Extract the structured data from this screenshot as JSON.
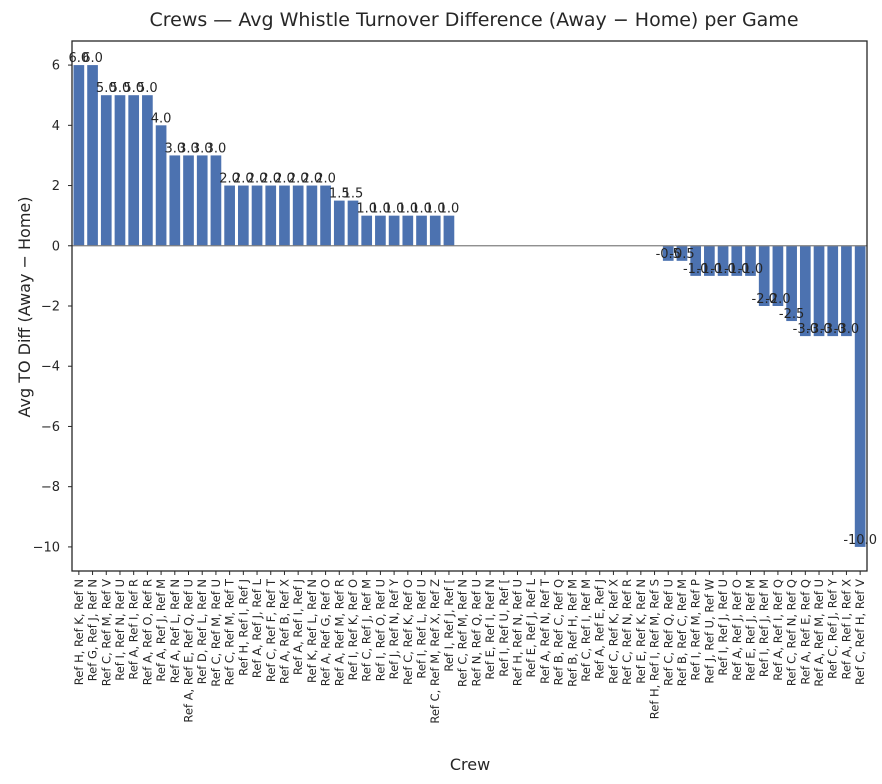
{
  "chart_data": {
    "type": "bar",
    "title": "Crews — Avg Whistle Turnover Difference (Away − Home) per Game",
    "xlabel": "Crew",
    "ylabel": "Avg TO Diff (Away − Home)",
    "ylim": [
      -10.8,
      6.8
    ],
    "yticks": [
      6,
      4,
      2,
      0,
      -2,
      -4,
      -6,
      -8,
      -10
    ],
    "grid": false,
    "legend": "none",
    "reference_line": 0,
    "colors": {
      "bar": "#4c72b0",
      "zero_line": "#808080",
      "frame": "#262626"
    },
    "categories": [
      "Ref H, Ref K, Ref N",
      "Ref G, Ref J, Ref N",
      "Ref C, Ref M, Ref V",
      "Ref I, Ref N, Ref U",
      "Ref A, Ref I, Ref R",
      "Ref A, Ref O, Ref R",
      "Ref A, Ref J, Ref M",
      "Ref A, Ref L, Ref N",
      "Ref A, Ref E, Ref Q, Ref U",
      "Ref D, Ref L, Ref N",
      "Ref C, Ref M, Ref U",
      "Ref C, Ref M, Ref T",
      "Ref H, Ref I, Ref J",
      "Ref A, Ref J, Ref L",
      "Ref C, Ref F, Ref T",
      "Ref A, Ref B, Ref X",
      "Ref A, Ref I, Ref J",
      "Ref K, Ref L, Ref N",
      "Ref A, Ref G, Ref O",
      "Ref A, Ref M, Ref R",
      "Ref I, Ref K, Ref O",
      "Ref C, Ref J, Ref M",
      "Ref I, Ref O, Ref U",
      "Ref J, Ref N, Ref Y",
      "Ref C, Ref K, Ref O",
      "Ref I, Ref L, Ref U",
      "Ref C, Ref M, Ref X, Ref Z",
      "Ref I, Ref J, Ref [",
      "Ref C, Ref M, Ref N",
      "Ref N, Ref Q, Ref U",
      "Ref E, Ref I, Ref N",
      "Ref I, Ref U, Ref [",
      "Ref H, Ref N, Ref U",
      "Ref E, Ref J, Ref L",
      "Ref A, Ref N, Ref T",
      "Ref B, Ref C, Ref Q",
      "Ref B, Ref H, Ref M",
      "Ref C, Ref I, Ref M",
      "Ref A, Ref E, Ref J",
      "Ref C, Ref K, Ref X",
      "Ref C, Ref N, Ref R",
      "Ref E, Ref K, Ref N",
      "Ref H, Ref I, Ref M, Ref S",
      "Ref C, Ref Q, Ref U",
      "Ref B, Ref C, Ref M",
      "Ref I, Ref M, Ref P",
      "Ref J, Ref U, Ref W",
      "Ref I, Ref J, Ref U",
      "Ref A, Ref J, Ref O",
      "Ref E, Ref J, Ref M",
      "Ref I, Ref J, Ref M",
      "Ref A, Ref I, Ref Q",
      "Ref C, Ref N, Ref Q",
      "Ref A, Ref E, Ref Q",
      "Ref A, Ref M, Ref U",
      "Ref C, Ref J, Ref Y",
      "Ref A, Ref I, Ref X",
      "Ref C, Ref H, Ref V"
    ],
    "values": [
      6.0,
      6.0,
      5.0,
      5.0,
      5.0,
      5.0,
      4.0,
      3.0,
      3.0,
      3.0,
      3.0,
      2.0,
      2.0,
      2.0,
      2.0,
      2.0,
      2.0,
      2.0,
      2.0,
      1.5,
      1.5,
      1.0,
      1.0,
      1.0,
      1.0,
      1.0,
      1.0,
      1.0,
      0.0,
      0.0,
      0.0,
      0.0,
      0.0,
      0.0,
      0.0,
      0.0,
      0.0,
      0.0,
      0.0,
      0.0,
      0.0,
      0.0,
      0.0,
      -0.5,
      -0.5,
      -1.0,
      -1.0,
      -1.0,
      -1.0,
      -1.0,
      -2.0,
      -2.0,
      -2.5,
      -3.0,
      -3.0,
      -3.0,
      -3.0,
      -10.0
    ],
    "data_labels": [
      "6.0",
      "6.0",
      "5.0",
      "5.0",
      "5.0",
      "5.0",
      "4.0",
      "3.0",
      "3.0",
      "3.0",
      "3.0",
      "2.0",
      "2.0",
      "2.0",
      "2.0",
      "2.0",
      "2.0",
      "2.0",
      "2.0",
      "1.5",
      "1.5",
      "1.0",
      "1.0",
      "1.0",
      "1.0",
      "1.0",
      "1.0",
      "1.0",
      "",
      "",
      "",
      "",
      "",
      "",
      "",
      "",
      "",
      "",
      "",
      "",
      "",
      "",
      "",
      "-0.5",
      "-0.5",
      "-1.0",
      "-1.0",
      "-1.0",
      "-1.0",
      "-1.0",
      "-2.0",
      "-2.0",
      "-2.5",
      "-3.0",
      "-3.0",
      "-3.0",
      "-3.0",
      "-10.0"
    ]
  }
}
